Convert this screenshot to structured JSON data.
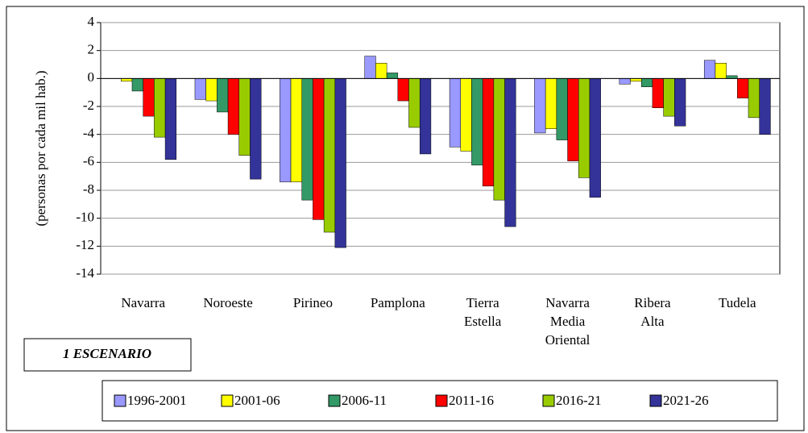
{
  "chart_data": {
    "type": "bar",
    "ylabel": "(personas por cada mil hab.)",
    "annotation": "1 ESCENARIO",
    "categories": [
      [
        "Navarra"
      ],
      [
        "Noroeste"
      ],
      [
        "Pirineo"
      ],
      [
        "Pamplona"
      ],
      [
        "Tierra",
        "Estella"
      ],
      [
        "Navarra",
        "Media",
        "Oriental"
      ],
      [
        "Ribera",
        "Alta"
      ],
      [
        "Tudela"
      ]
    ],
    "series": [
      {
        "name": "1996-2001",
        "color": "#9999ff",
        "values": [
          0,
          -1.5,
          -7.4,
          1.6,
          -4.9,
          -3.9,
          -0.4,
          1.3
        ]
      },
      {
        "name": "2001-06",
        "color": "#ffff00",
        "values": [
          -0.2,
          -1.6,
          -7.4,
          1.1,
          -5.2,
          -3.6,
          -0.2,
          1.1
        ]
      },
      {
        "name": "2006-11",
        "color": "#339966",
        "values": [
          -0.9,
          -2.4,
          -8.7,
          0.4,
          -6.2,
          -4.4,
          -0.6,
          0.2
        ]
      },
      {
        "name": "2011-16",
        "color": "#ff0000",
        "values": [
          -2.7,
          -4.0,
          -10.1,
          -1.6,
          -7.7,
          -5.9,
          -2.1,
          -1.4
        ]
      },
      {
        "name": "2016-21",
        "color": "#99cc00",
        "values": [
          -4.2,
          -5.5,
          -11.0,
          -3.5,
          -8.7,
          -7.1,
          -2.7,
          -2.8
        ]
      },
      {
        "name": "2021-26",
        "color": "#333399",
        "values": [
          -5.8,
          -7.2,
          -12.1,
          -5.4,
          -10.6,
          -8.5,
          -3.4,
          -4.0
        ]
      }
    ],
    "ylim": [
      -14,
      4
    ],
    "yticks": [
      -14,
      -12,
      -10,
      -8,
      -6,
      -4,
      -2,
      0,
      2,
      4
    ],
    "grid": true,
    "legend": "bottom"
  }
}
